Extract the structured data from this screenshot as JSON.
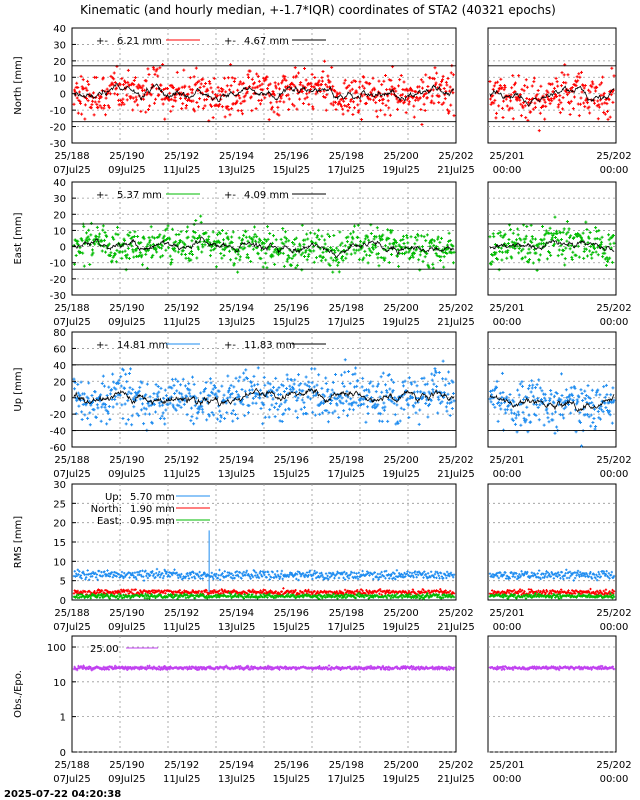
{
  "title": "Kinematic (and hourly median, +-1.7*IQR) coordinates of STA2 (40321 epochs)",
  "timestamp": "2025-07-22 04:20:38",
  "colors": {
    "north": "#ff0000",
    "east": "#00bb00",
    "up": "#1e8cf0",
    "obs": "#c040f0",
    "median": "#000000"
  },
  "main_x_ticks": [
    {
      "top": "25/188",
      "bottom": "07Jul25"
    },
    {
      "top": "25/190",
      "bottom": "09Jul25"
    },
    {
      "top": "25/192",
      "bottom": "11Jul25"
    },
    {
      "top": "25/194",
      "bottom": "13Jul25"
    },
    {
      "top": "25/196",
      "bottom": "15Jul25"
    },
    {
      "top": "25/198",
      "bottom": "17Jul25"
    },
    {
      "top": "25/200",
      "bottom": "19Jul25"
    },
    {
      "top": "25/202",
      "bottom": "21Jul25"
    }
  ],
  "side_x_ticks": [
    {
      "top": "25/201",
      "bottom": "00:00"
    },
    {
      "top": "25/202",
      "bottom": "00:00"
    }
  ],
  "chart_data": [
    {
      "type": "scatter",
      "name": "north",
      "ylabel": "North [mm]",
      "ylim": [
        -30,
        40
      ],
      "yticks": [
        "40",
        "30",
        "20",
        "10",
        "0",
        "-10",
        "-20",
        "-30"
      ],
      "legend": [
        {
          "label": "6.21 mm"
        },
        {
          "label": "4.67 mm"
        }
      ],
      "bounds": [
        17,
        -17
      ],
      "spread": 9
    },
    {
      "type": "scatter",
      "name": "east",
      "ylabel": "East [mm]",
      "ylim": [
        -30,
        40
      ],
      "yticks": [
        "40",
        "30",
        "20",
        "10",
        "0",
        "-10",
        "-20",
        "-30"
      ],
      "legend": [
        {
          "label": "5.37 mm"
        },
        {
          "label": "4.09 mm"
        }
      ],
      "bounds": [
        14,
        -14
      ],
      "spread": 8
    },
    {
      "type": "scatter",
      "name": "up",
      "ylabel": "Up [mm]",
      "ylim": [
        -60,
        80
      ],
      "yticks": [
        "80",
        "60",
        "40",
        "20",
        "0",
        "-20",
        "-40",
        "-60"
      ],
      "legend": [
        {
          "label": "14.81 mm"
        },
        {
          "label": "11.83 mm"
        }
      ],
      "bounds": [
        40,
        -40
      ],
      "spread": 20
    },
    {
      "type": "scatter",
      "name": "rms",
      "ylabel": "RMS [mm]",
      "ylim": [
        0,
        30
      ],
      "yticks": [
        "30",
        "25",
        "20",
        "15",
        "10",
        "5",
        "0"
      ],
      "legend": [
        {
          "name": "Up:",
          "label": "5.70 mm"
        },
        {
          "name": "North:",
          "label": "1.90 mm"
        },
        {
          "name": "East:",
          "label": "0.95 mm"
        }
      ],
      "levels": {
        "up": 6.5,
        "north": 2,
        "east": 1
      }
    },
    {
      "type": "scatter",
      "name": "obs",
      "ylabel": "Obs./Epo.",
      "log": true,
      "ylim": [
        0,
        200
      ],
      "yticks": [
        "100",
        "10",
        "1",
        "0"
      ],
      "legend": [
        {
          "label": "25.00"
        }
      ],
      "level": 25
    }
  ]
}
